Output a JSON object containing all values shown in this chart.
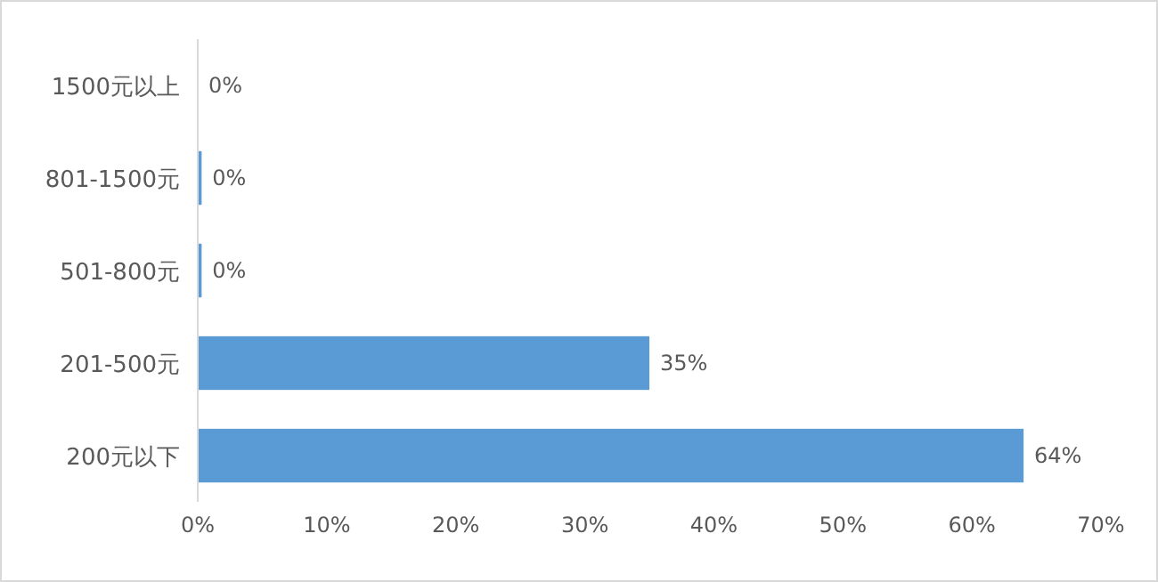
{
  "chart_data": {
    "type": "bar",
    "orientation": "horizontal",
    "categories": [
      "1500元以上",
      "801-1500元",
      "501-800元",
      "201-500元",
      "200元以下"
    ],
    "values": [
      0,
      0.3,
      0.3,
      35,
      64
    ],
    "value_labels": [
      "0%",
      "0%",
      "0%",
      "35%",
      "64%"
    ],
    "color": "#5b9bd5",
    "xlim": [
      0,
      70
    ],
    "xticks": [
      {
        "value": 0,
        "label": "0%"
      },
      {
        "value": 10,
        "label": "10%"
      },
      {
        "value": 20,
        "label": "20%"
      },
      {
        "value": 30,
        "label": "30%"
      },
      {
        "value": 40,
        "label": "40%"
      },
      {
        "value": 50,
        "label": "50%"
      },
      {
        "value": 60,
        "label": "60%"
      },
      {
        "value": 70,
        "label": "70%"
      }
    ],
    "grid": false
  }
}
